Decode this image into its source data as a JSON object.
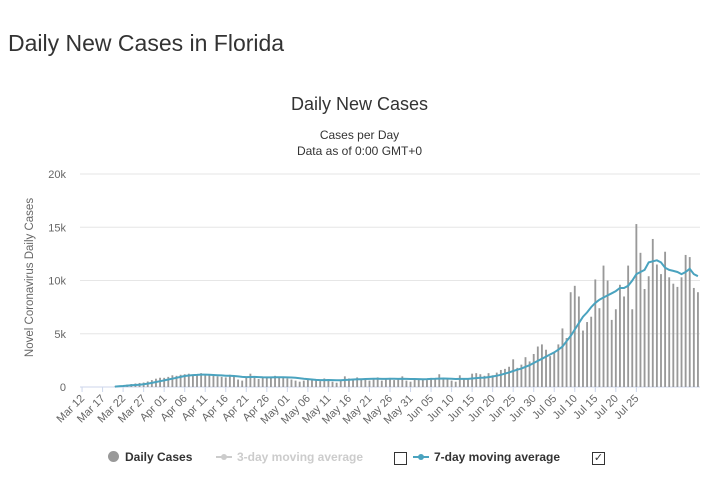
{
  "page_heading": "Daily New Cases in Florida",
  "chart": {
    "title": "Daily New Cases",
    "subtitle_line1": "Cases per Day",
    "subtitle_line2": "Data as of 0:00 GMT+0"
  },
  "legend": {
    "daily_cases": "Daily Cases",
    "avg3": "3-day moving average",
    "avg7": "7-day moving average",
    "avg3_checked": false,
    "avg7_checked": true
  },
  "colors": {
    "bars": "#999999",
    "avg7": "#4aa3bf",
    "avg3": "#cccccc",
    "grid": "#e6e6e6"
  },
  "chart_data": {
    "type": "bar",
    "title": "Daily New Cases",
    "subtitle": "Cases per Day / Data as of 0:00 GMT+0",
    "ylabel": "Novel Coronavirus Daily Cases",
    "xlabel": "",
    "ylim": [
      0,
      20000
    ],
    "yticks": [
      0,
      5000,
      10000,
      15000,
      20000
    ],
    "ytick_labels": [
      "0",
      "5k",
      "10k",
      "15k",
      "20k"
    ],
    "xtick_labels": [
      "Mar 12",
      "Mar 17",
      "Mar 22",
      "Mar 27",
      "Apr 01",
      "Apr 06",
      "Apr 11",
      "Apr 16",
      "Apr 21",
      "Apr 26",
      "May 01",
      "May 06",
      "May 11",
      "May 16",
      "May 21",
      "May 26",
      "May 31",
      "Jun 05",
      "Jun 10",
      "Jun 15",
      "Jun 20",
      "Jun 25",
      "Jun 30",
      "Jul 05",
      "Jul 10",
      "Jul 15",
      "Jul 20",
      "Jul 25"
    ],
    "x_start": "Mar 12",
    "legend_position": "bottom",
    "grid": true,
    "series": [
      {
        "name": "Daily Cases",
        "type": "bar",
        "values": [
          0,
          0,
          0,
          0,
          0,
          0,
          0,
          0,
          40,
          90,
          150,
          230,
          280,
          330,
          380,
          420,
          520,
          650,
          780,
          870,
          860,
          950,
          1100,
          1050,
          1150,
          1200,
          1250,
          1180,
          1100,
          1300,
          1150,
          1100,
          1050,
          1000,
          950,
          900,
          1150,
          1000,
          700,
          600,
          900,
          1250,
          1000,
          750,
          950,
          850,
          900,
          1050,
          950,
          900,
          800,
          700,
          600,
          500,
          600,
          800,
          700,
          650,
          550,
          800,
          700,
          500,
          400,
          700,
          1000,
          800,
          750,
          900,
          800,
          700,
          600,
          700,
          900,
          600,
          750,
          850,
          650,
          700,
          1000,
          600,
          500,
          800,
          750,
          700,
          650,
          850,
          800,
          1200,
          700,
          750,
          600,
          500,
          1100,
          750,
          700,
          1250,
          1300,
          1200,
          1050,
          1300,
          1100,
          1350,
          1600,
          1700,
          1900,
          2600,
          1800,
          2100,
          2800,
          2400,
          3100,
          3800,
          4000,
          3500,
          2900,
          3200,
          4000,
          5500,
          4600,
          8900,
          9500,
          8500,
          5300,
          6100,
          6600,
          10100,
          7400,
          11400,
          10000,
          6300,
          7300,
          9600,
          8500,
          11400,
          7300,
          15300,
          12600,
          9200,
          10400,
          13900,
          11500,
          10600,
          12700,
          10300,
          9700,
          9400,
          10300,
          12400,
          12200,
          9300,
          8900
        ]
      },
      {
        "name": "7-day moving average",
        "type": "line",
        "values": [
          0,
          0,
          0,
          0,
          0,
          0,
          0,
          0,
          40,
          65,
          93,
          128,
          158,
          187,
          215,
          260,
          320,
          388,
          467,
          549,
          620,
          700,
          780,
          860,
          945,
          1030,
          1080,
          1120,
          1140,
          1160,
          1160,
          1150,
          1130,
          1110,
          1090,
          1060,
          1050,
          1030,
          1000,
          950,
          930,
          940,
          950,
          930,
          910,
          900,
          900,
          920,
          920,
          910,
          900,
          890,
          870,
          830,
          780,
          740,
          700,
          670,
          650,
          650,
          660,
          650,
          640,
          640,
          660,
          680,
          700,
          720,
          730,
          750,
          760,
          770,
          780,
          760,
          760,
          770,
          770,
          760,
          770,
          760,
          750,
          750,
          740,
          730,
          740,
          760,
          770,
          790,
          800,
          790,
          770,
          750,
          760,
          760,
          760,
          800,
          840,
          860,
          880,
          930,
          990,
          1060,
          1150,
          1260,
          1370,
          1500,
          1620,
          1730,
          1900,
          2050,
          2250,
          2450,
          2650,
          2850,
          3050,
          3250,
          3500,
          3800,
          4300,
          4800,
          5400,
          6000,
          6600,
          7000,
          7500,
          7900,
          8200,
          8400,
          8600,
          8800,
          9000,
          9300,
          9300,
          9500,
          10000,
          10600,
          10800,
          11000,
          11700,
          11800,
          11900,
          11700,
          11200,
          11000,
          10900,
          10800,
          10600,
          10800,
          11100,
          10600,
          10400
        ]
      }
    ]
  }
}
